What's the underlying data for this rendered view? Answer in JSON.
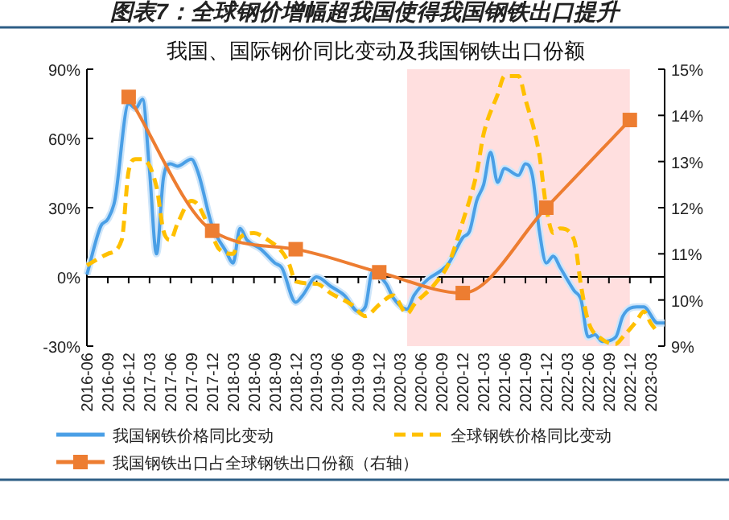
{
  "chart_data": {
    "type": "line",
    "title": "图表7：全球钢价增幅超我国使得我国钢铁出口提升",
    "subtitle": "我国、国际钢价同比变动及我国钢铁出口份额",
    "xlim": [
      "2016-06",
      "2023-05"
    ],
    "xticks": [
      "2016-06",
      "2016-09",
      "2016-12",
      "2017-03",
      "2017-06",
      "2017-09",
      "2017-12",
      "2018-03",
      "2018-06",
      "2018-09",
      "2018-12",
      "2019-03",
      "2019-06",
      "2019-09",
      "2019-12",
      "2020-03",
      "2020-06",
      "2020-09",
      "2020-12",
      "2021-03",
      "2021-06",
      "2021-09",
      "2021-12",
      "2022-03",
      "2022-06",
      "2022-09",
      "2022-12",
      "2023-03"
    ],
    "ylim": [
      -30,
      90
    ],
    "yticks": [
      {
        "value": -30,
        "label": "-30%"
      },
      {
        "value": 0,
        "label": "0%"
      },
      {
        "value": 30,
        "label": "30%"
      },
      {
        "value": 60,
        "label": "60%"
      },
      {
        "value": 90,
        "label": "90%"
      }
    ],
    "y2lim": [
      9,
      15
    ],
    "y2ticks": [
      {
        "value": 9,
        "label": "9%"
      },
      {
        "value": 10,
        "label": "10%"
      },
      {
        "value": 11,
        "label": "11%"
      },
      {
        "value": 12,
        "label": "12%"
      },
      {
        "value": 13,
        "label": "13%"
      },
      {
        "value": 14,
        "label": "14%"
      },
      {
        "value": 15,
        "label": "15%"
      }
    ],
    "legend": "bottom",
    "ref_lines": [
      {
        "axis": "y",
        "value": 0,
        "color": "#000000"
      }
    ],
    "bands": [
      {
        "axis": "x",
        "from": "2020-04",
        "to": "2022-12",
        "color": "#ffdfdf"
      }
    ],
    "series": [
      {
        "name": "我国钢铁价格同比变动",
        "color": "#4a9fe6",
        "line_style": "solid",
        "marker": "none",
        "x": [
          "2016-06",
          "2016-08",
          "2016-09",
          "2016-10",
          "2016-12",
          "2017-01",
          "2017-02",
          "2017-03",
          "2017-04",
          "2017-05",
          "2017-06",
          "2017-07",
          "2017-09",
          "2017-10",
          "2017-12",
          "2018-02",
          "2018-03",
          "2018-04",
          "2018-05",
          "2018-07",
          "2018-09",
          "2018-10",
          "2018-12",
          "2019-01",
          "2019-03",
          "2019-05",
          "2019-07",
          "2019-09",
          "2019-10",
          "2019-11",
          "2020-01",
          "2020-02",
          "2020-04",
          "2020-05",
          "2020-07",
          "2020-09",
          "2020-10",
          "2020-12",
          "2021-01",
          "2021-02",
          "2021-03",
          "2021-04",
          "2021-05",
          "2021-06",
          "2021-08",
          "2021-09",
          "2021-10",
          "2021-11",
          "2021-12",
          "2022-01",
          "2022-02",
          "2022-04",
          "2022-05",
          "2022-06",
          "2022-07",
          "2022-08",
          "2022-10",
          "2022-11",
          "2023-01",
          "2023-02",
          "2023-04",
          "2023-05"
        ],
        "values": [
          1,
          22,
          25,
          33,
          75,
          73,
          77,
          46,
          10,
          43,
          49,
          48,
          51,
          45,
          22,
          11,
          6,
          21,
          16,
          12,
          6,
          4,
          -11,
          -8,
          0,
          -4,
          -8,
          -15,
          -13,
          2,
          -3,
          -9,
          -14,
          -8,
          -1,
          3,
          6,
          17,
          20,
          33,
          40,
          54,
          41,
          47,
          44,
          49,
          44,
          20,
          6,
          9,
          4,
          -6,
          -10,
          -26,
          -25,
          -28,
          -26,
          -17,
          -13,
          -13,
          -20,
          -20
        ]
      },
      {
        "name": "全球钢铁价格同比变动",
        "color": "#ffc000",
        "line_style": "dashed",
        "marker": "none",
        "x": [
          "2016-06",
          "2016-09",
          "2016-11",
          "2016-12",
          "2017-01",
          "2017-02",
          "2017-04",
          "2017-05",
          "2017-06",
          "2017-07",
          "2017-09",
          "2017-10",
          "2017-12",
          "2018-01",
          "2018-03",
          "2018-04",
          "2018-06",
          "2018-08",
          "2018-10",
          "2018-11",
          "2018-12",
          "2019-03",
          "2019-05",
          "2019-08",
          "2019-10",
          "2019-12",
          "2020-02",
          "2020-04",
          "2020-05",
          "2020-08",
          "2020-10",
          "2020-12",
          "2021-02",
          "2021-03",
          "2021-05",
          "2021-06",
          "2021-08",
          "2021-09",
          "2021-11",
          "2021-12",
          "2022-01",
          "2022-02",
          "2022-04",
          "2022-05",
          "2022-06",
          "2022-08",
          "2022-10",
          "2022-11",
          "2023-01",
          "2023-02",
          "2023-03",
          "2023-04"
        ],
        "values": [
          5,
          10,
          16,
          46,
          51,
          51,
          39,
          20,
          16,
          23,
          33,
          31,
          18,
          12,
          10,
          17,
          19,
          16,
          11,
          6,
          -2,
          -3,
          -7,
          -12,
          -17,
          -12,
          -8,
          -16,
          -12,
          -3,
          6,
          24,
          45,
          62,
          79,
          87,
          87,
          77,
          53,
          30,
          19,
          21,
          16,
          -4,
          -19,
          -27,
          -29,
          -26,
          -19,
          -15,
          -20,
          -24
        ]
      },
      {
        "name": "我国钢铁出口占全球钢铁出口份额（右轴）",
        "color": "#ed7d31",
        "line_style": "solid",
        "marker": "square",
        "axis": "y2",
        "x": [
          "2016-12",
          "2017-12",
          "2018-12",
          "2019-12",
          "2020-12",
          "2021-12",
          "2022-12"
        ],
        "values": [
          14.4,
          11.5,
          11.1,
          10.6,
          10.15,
          12.0,
          13.9
        ]
      }
    ]
  }
}
